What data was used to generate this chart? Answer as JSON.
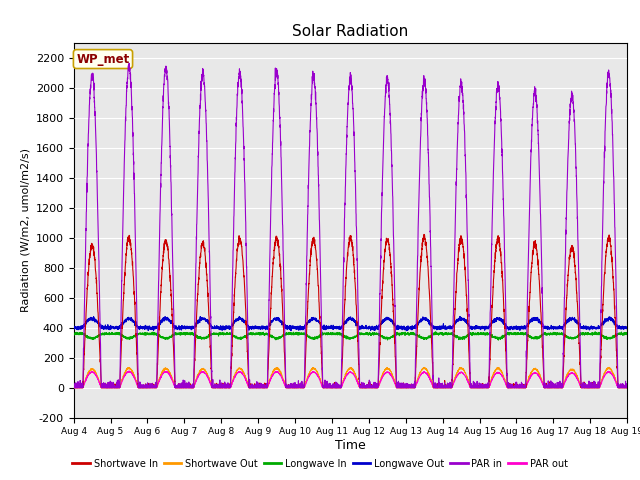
{
  "title": "Solar Radiation",
  "ylabel": "Radiation (W/m2, umol/m2/s)",
  "xlabel": "Time",
  "ylim": [
    -200,
    2300
  ],
  "yticks": [
    -200,
    0,
    200,
    400,
    600,
    800,
    1000,
    1200,
    1400,
    1600,
    1800,
    2000,
    2200
  ],
  "n_days": 15,
  "points_per_day": 288,
  "bg_color": "#e8e8e8",
  "annotation_text": "WP_met",
  "annotation_bg": "#fffff0",
  "annotation_border": "#c8a000",
  "annotation_text_color": "#8b0000",
  "legend_entries": [
    "Shortwave In",
    "Shortwave Out",
    "Longwave In",
    "Longwave Out",
    "PAR in",
    "PAR out"
  ],
  "line_colors": [
    "#cc0000",
    "#ff9900",
    "#00aa00",
    "#0000cc",
    "#9900cc",
    "#ff00cc"
  ],
  "sw_peaks": [
    950,
    1000,
    980,
    960,
    990,
    1000,
    990,
    1000,
    990,
    1000,
    1000,
    990,
    960,
    940,
    1000
  ],
  "par_peaks": [
    2090,
    2140,
    2130,
    2100,
    2100,
    2110,
    2080,
    2060,
    2060,
    2050,
    2030,
    2020,
    1980,
    1950,
    2100
  ],
  "day_start": 0.25,
  "day_end": 0.75,
  "lw_in_base": 360,
  "lw_out_base": 400,
  "lw_out_rise": 60,
  "lw_in_dip": 30
}
